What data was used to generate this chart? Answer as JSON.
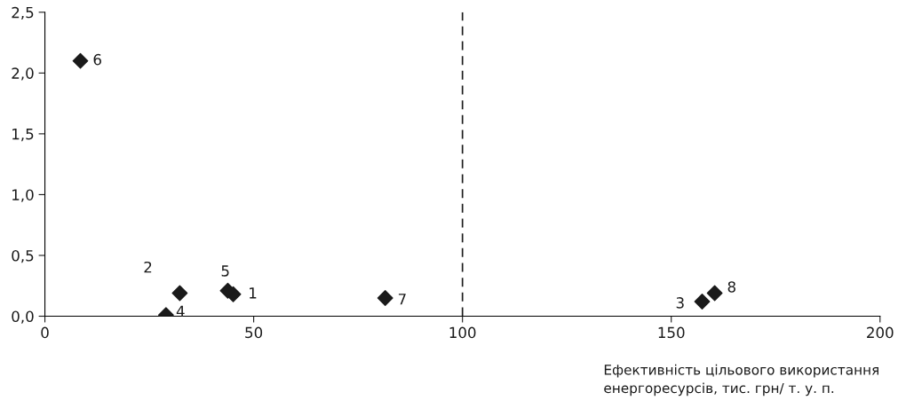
{
  "chart_data": {
    "type": "scatter",
    "xlabel": "Ефективність цільового використання\nенергоресурсів, тис. грн/ т. у. п.",
    "x": [
      45.1,
      32.3,
      157.4,
      29.0,
      43.8,
      8.5,
      81.5,
      160.4
    ],
    "series": [
      {
        "color": "#1a1a1a",
        "values": [
          0.18,
          0.19,
          0.12,
          0.01,
          0.21,
          2.1,
          0.15,
          0.19
        ]
      }
    ],
    "marker": "diamond",
    "xlim": [
      0,
      200
    ],
    "xticks": [
      0,
      50,
      100,
      150,
      200
    ],
    "ylim": [
      0,
      2.5
    ],
    "yticks": [
      {
        "value": 0,
        "label": "0,0"
      },
      {
        "value": 0.5,
        "label": "0,5"
      },
      {
        "value": 1.0,
        "label": "1,0"
      },
      {
        "value": 1.5,
        "label": "1,5"
      },
      {
        "value": 2.0,
        "label": "2,0"
      },
      {
        "value": 2.5,
        "label": "2,5"
      }
    ],
    "ref_lines": [
      {
        "axis": "x",
        "value": 100,
        "color": "#1a1a1a",
        "line_style": "dashed"
      }
    ],
    "annotations": [
      {
        "text": "1",
        "x": 45.1,
        "y": 0.18
      },
      {
        "text": "2",
        "x": 32.3,
        "y": 0.19
      },
      {
        "text": "3",
        "x": 157.4,
        "y": 0.12
      },
      {
        "text": "4",
        "x": 29.0,
        "y": 0.01
      },
      {
        "text": "5",
        "x": 43.8,
        "y": 0.21
      },
      {
        "text": "6",
        "x": 8.5,
        "y": 2.1
      },
      {
        "text": "7",
        "x": 81.5,
        "y": 0.15
      },
      {
        "text": "8",
        "x": 160.4,
        "y": 0.19
      }
    ],
    "grid": false,
    "legend": false
  }
}
